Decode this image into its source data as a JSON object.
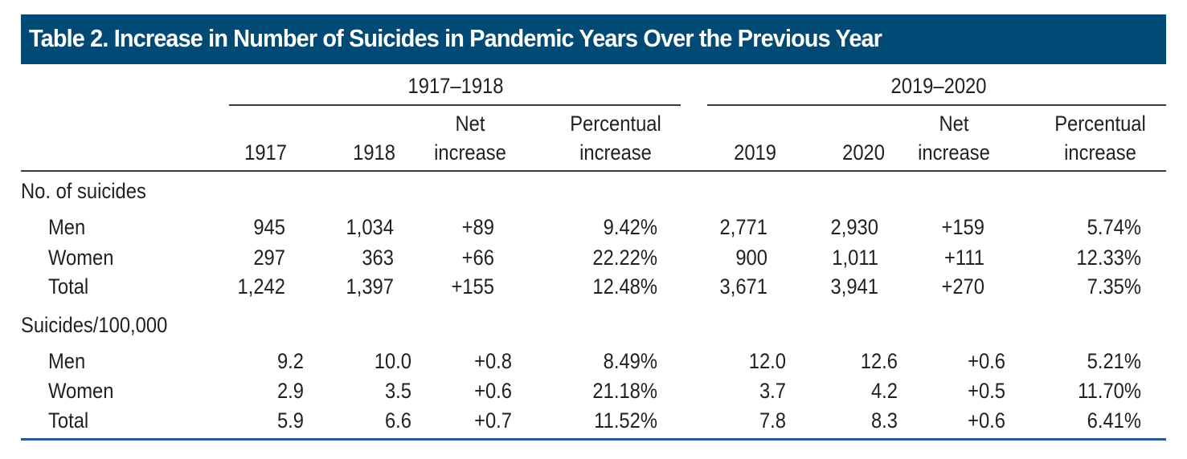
{
  "title": "Table 2. Increase in Number of Suicides in Pandemic Years Over the Previous Year",
  "colors": {
    "title_bar": "#004a75",
    "bottom_rule": "#2a5a90"
  },
  "groups": [
    {
      "label": "1917–1918",
      "columns": [
        {
          "line1": "",
          "line2": "1917"
        },
        {
          "line1": "",
          "line2": "1918"
        },
        {
          "line1": "Net",
          "line2": "increase"
        },
        {
          "line1": "Percentual",
          "line2": "increase"
        }
      ]
    },
    {
      "label": "2019–2020",
      "columns": [
        {
          "line1": "",
          "line2": "2019"
        },
        {
          "line1": "",
          "line2": "2020"
        },
        {
          "line1": "Net",
          "line2": "increase"
        },
        {
          "line1": "Percentual",
          "line2": "increase"
        }
      ]
    }
  ],
  "sections": [
    {
      "label": "No. of suicides",
      "rows": [
        {
          "label": "Men",
          "values": [
            "945",
            "1,034",
            "+89",
            "9.42%",
            "2,771",
            "2,930",
            "+159",
            "5.74%"
          ]
        },
        {
          "label": "Women",
          "values": [
            "297",
            "363",
            "+66",
            "22.22%",
            "900",
            "1,011",
            "+111",
            "12.33%"
          ]
        },
        {
          "label": "Total",
          "values": [
            "1,242",
            "1,397",
            "+155",
            "12.48%",
            "3,671",
            "3,941",
            "+270",
            "7.35%"
          ]
        }
      ]
    },
    {
      "label": "Suicides/100,000",
      "rows": [
        {
          "label": "Men",
          "values": [
            "9.2",
            "10.0",
            "+0.8",
            "8.49%",
            "12.0",
            "12.6",
            "+0.6",
            "5.21%"
          ]
        },
        {
          "label": "Women",
          "values": [
            "2.9",
            "3.5",
            "+0.6",
            "21.18%",
            "3.7",
            "4.2",
            "+0.5",
            "11.70%"
          ]
        },
        {
          "label": "Total",
          "values": [
            "5.9",
            "6.6",
            "+0.7",
            "11.52%",
            "7.8",
            "8.3",
            "+0.6",
            "6.41%"
          ]
        }
      ]
    }
  ]
}
